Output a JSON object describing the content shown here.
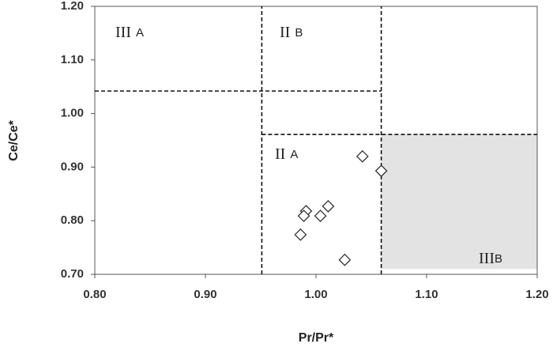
{
  "chart_data": {
    "type": "scatter",
    "x_label": "Pr/Pr*",
    "y_label": "Ce/Ce*",
    "x": [
      1.042,
      1.059,
      1.011,
      0.991,
      0.989,
      1.004,
      0.986,
      1.026
    ],
    "values": [
      0.92,
      0.893,
      0.827,
      0.818,
      0.809,
      0.809,
      0.774,
      0.727
    ],
    "marker": "diamond",
    "color": "#333333",
    "xlim": [
      0.8,
      1.2
    ],
    "xticks": [
      {
        "value": 0.8,
        "label": "0.80"
      },
      {
        "value": 0.9,
        "label": "0.90"
      },
      {
        "value": 1.0,
        "label": "1.00"
      },
      {
        "value": 1.1,
        "label": "1.10"
      },
      {
        "value": 1.2,
        "label": "1.20"
      }
    ],
    "ylim": [
      0.7,
      1.2
    ],
    "yticks": [
      {
        "value": 0.7,
        "label": "0.70"
      },
      {
        "value": 0.8,
        "label": "0.80"
      },
      {
        "value": 0.9,
        "label": "0.90"
      },
      {
        "value": 1.0,
        "label": "1.00"
      },
      {
        "value": 1.1,
        "label": "1.10"
      },
      {
        "value": 1.2,
        "label": "1.20"
      }
    ],
    "grid": false,
    "dividers": [
      {
        "x": [
          0.951,
          0.951
        ],
        "y": [
          0.7,
          1.2
        ]
      },
      {
        "x": [
          1.059,
          1.059
        ],
        "y": [
          0.7,
          1.2
        ]
      },
      {
        "x": [
          0.8,
          1.059
        ],
        "y": [
          1.042,
          1.042
        ]
      },
      {
        "x": [
          0.951,
          1.2
        ],
        "y": [
          0.961,
          0.961
        ]
      }
    ],
    "shaded_region": {
      "x": [
        1.059,
        1.2
      ],
      "y": [
        0.71,
        0.961
      ],
      "color": "#e3e3e3"
    },
    "region_labels": [
      {
        "numeral": "III",
        "letter": "A"
      },
      {
        "numeral": "II",
        "letter": "B"
      },
      {
        "numeral": "II",
        "letter": "A"
      },
      {
        "numeral": "III",
        "letter": "B"
      }
    ]
  }
}
